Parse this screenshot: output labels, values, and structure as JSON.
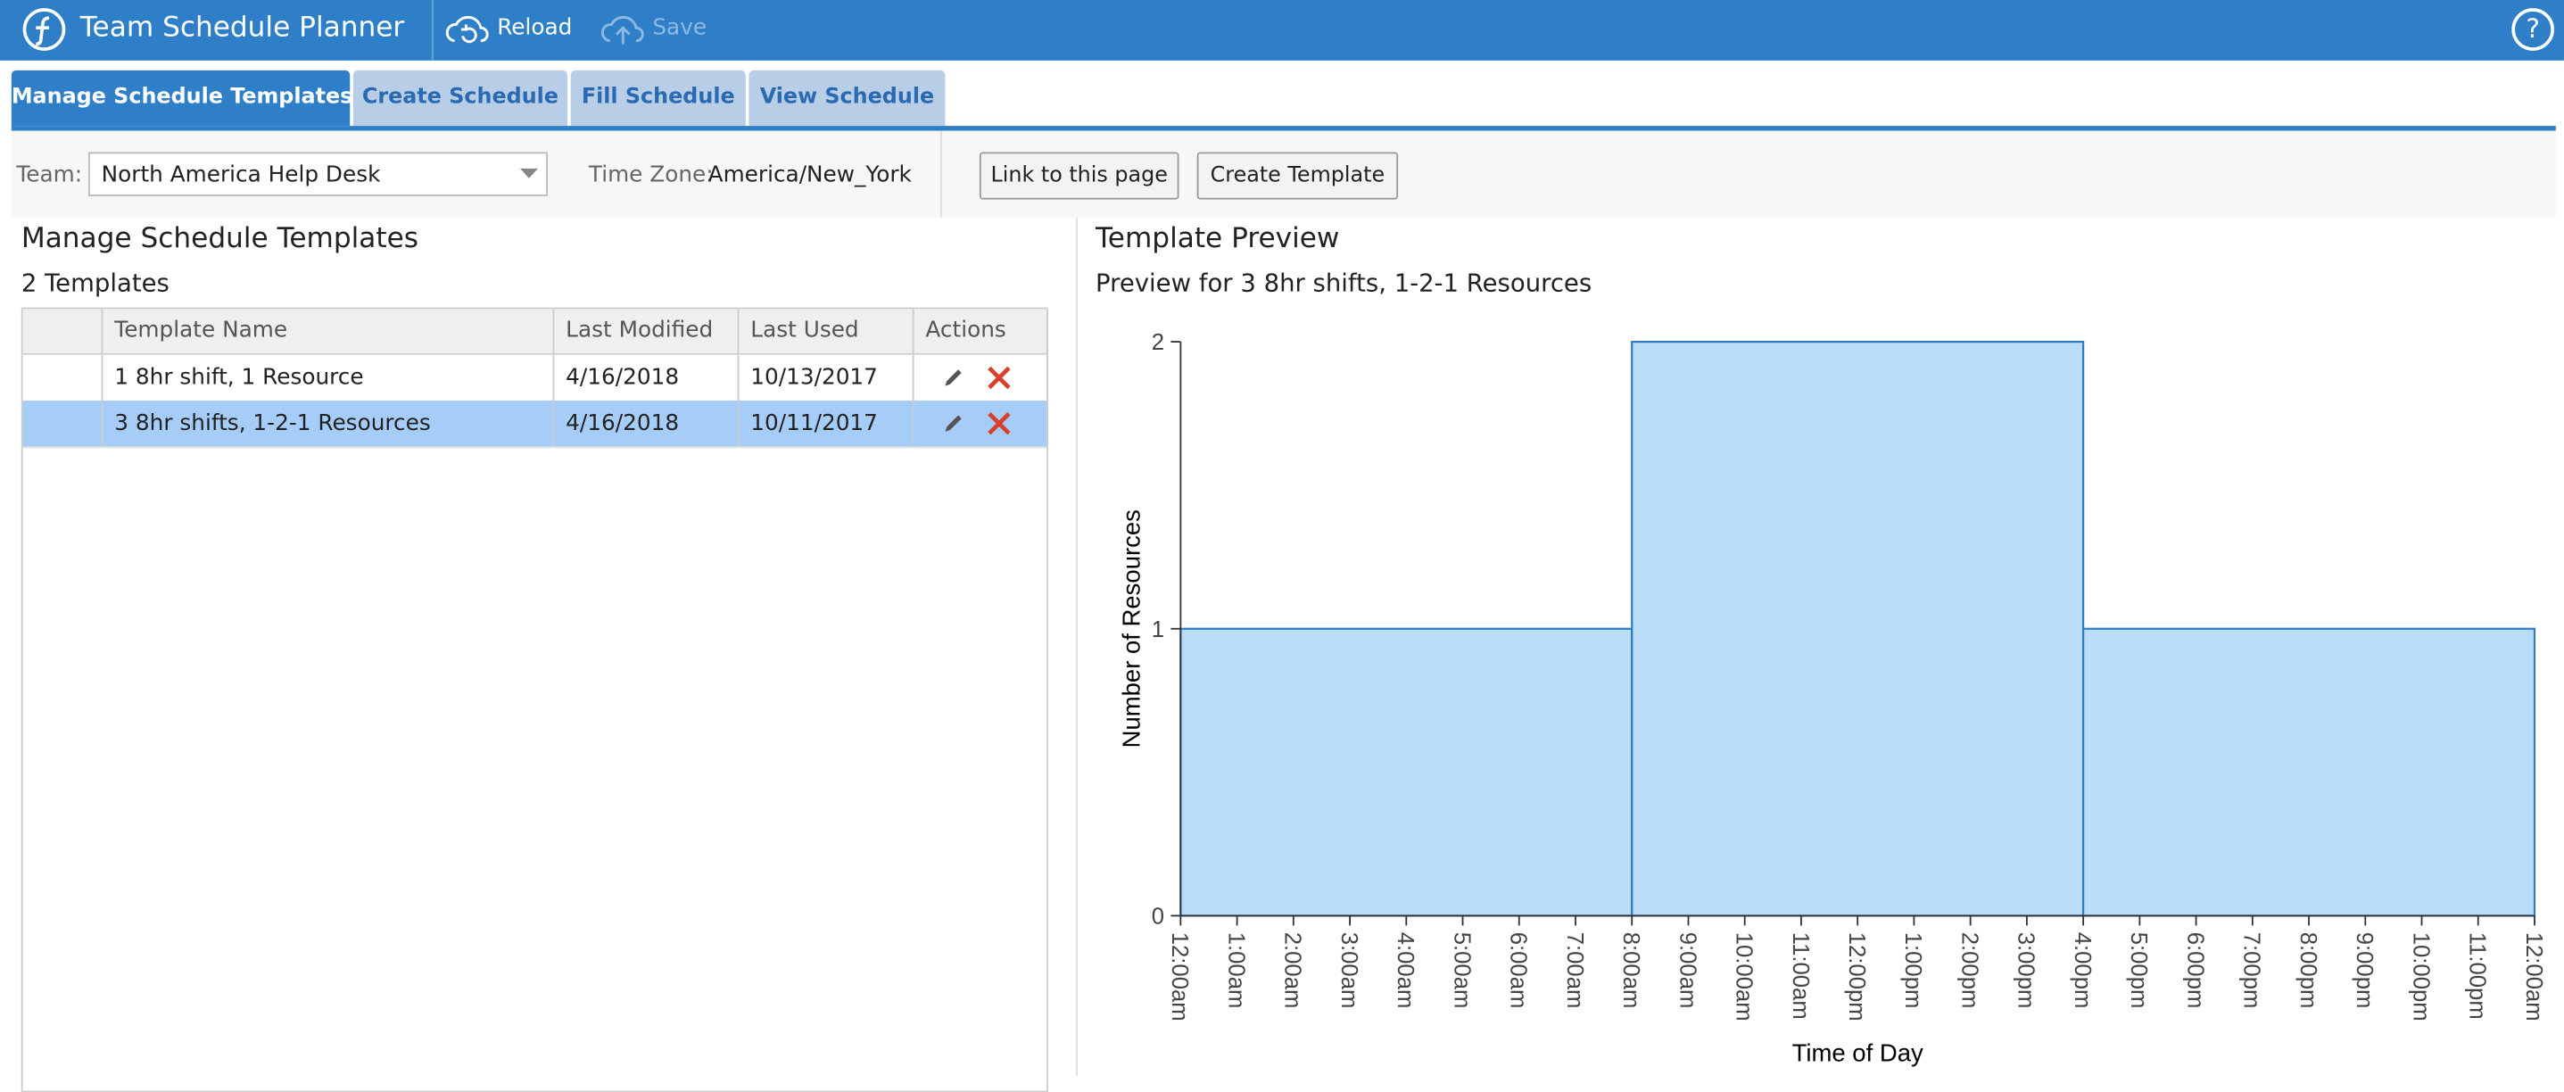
{
  "header": {
    "title": "Team Schedule Planner",
    "buttons": [
      "Reload",
      "Save"
    ],
    "help": "?"
  },
  "tabs": [
    "Manage Schedule Templates",
    "Create Schedule",
    "Fill Schedule",
    "View Schedule"
  ],
  "toolbar": {
    "team_label": "Team:",
    "team": "North America Help Desk",
    "timezone_label": "Time Zone:",
    "timezone": "America/New_York",
    "buttons": [
      "Link to this page",
      "Create Template"
    ]
  },
  "templates": {
    "title": "Manage Schedule Templates",
    "count": "2 Templates",
    "columns": [
      "Template Name",
      "Last Modified",
      "Last Used",
      "Actions"
    ],
    "rows": [
      [
        "1 8hr shift, 1 Resource",
        "4/16/2018",
        "10/13/2017"
      ],
      [
        "3 8hr shifts, 1-2-1 Resources",
        "4/16/2018",
        "10/11/2017"
      ]
    ]
  },
  "preview": {
    "title": "Template Preview",
    "subtitle": "Preview for 3 8hr shifts, 1-2-1 Resources",
    "chart_data": {
      "type": "histogram",
      "xlabel": "Time of Day",
      "ylabel": "Number of Resources",
      "bins": [
        0,
        8,
        16,
        24
      ],
      "values": [
        1,
        2,
        1
      ],
      "color": "#b9dcf7",
      "edge_color": "#2f7bc4",
      "xlim": [
        0,
        24
      ],
      "ylim": [
        0,
        2
      ],
      "yticks": [
        0,
        1,
        2
      ],
      "xticks": [
        {
          "value": 0,
          "label": "12:00am"
        },
        {
          "value": 1,
          "label": "1:00am"
        },
        {
          "value": 2,
          "label": "2:00am"
        },
        {
          "value": 3,
          "label": "3:00am"
        },
        {
          "value": 4,
          "label": "4:00am"
        },
        {
          "value": 5,
          "label": "5:00am"
        },
        {
          "value": 6,
          "label": "6:00am"
        },
        {
          "value": 7,
          "label": "7:00am"
        },
        {
          "value": 8,
          "label": "8:00am"
        },
        {
          "value": 9,
          "label": "9:00am"
        },
        {
          "value": 10,
          "label": "10:00am"
        },
        {
          "value": 11,
          "label": "11:00am"
        },
        {
          "value": 12,
          "label": "12:00pm"
        },
        {
          "value": 13,
          "label": "1:00pm"
        },
        {
          "value": 14,
          "label": "2:00pm"
        },
        {
          "value": 15,
          "label": "3:00pm"
        },
        {
          "value": 16,
          "label": "4:00pm"
        },
        {
          "value": 17,
          "label": "5:00pm"
        },
        {
          "value": 18,
          "label": "6:00pm"
        },
        {
          "value": 19,
          "label": "7:00pm"
        },
        {
          "value": 20,
          "label": "8:00pm"
        },
        {
          "value": 21,
          "label": "9:00pm"
        },
        {
          "value": 22,
          "label": "10:00pm"
        },
        {
          "value": 23,
          "label": "11:00pm"
        },
        {
          "value": 24,
          "label": "12:00am"
        }
      ]
    }
  }
}
